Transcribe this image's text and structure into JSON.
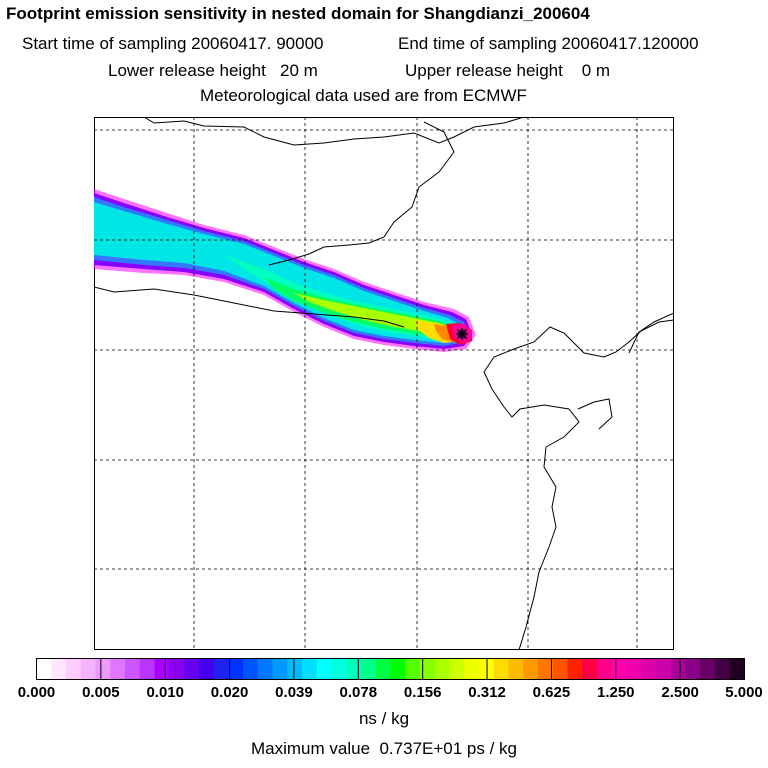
{
  "header": {
    "title": "Footprint emission sensitivity in nested domain for Shangdianzi_200604",
    "start_time": "Start time of sampling 20060417. 90000",
    "end_time": "End time of sampling 20060417.120000",
    "lower_release": "Lower release height   20 m",
    "upper_release": "Upper release height    0 m",
    "met_data": "Meteorological data used are from ECMWF"
  },
  "map": {
    "receptor_marker": "star-marker",
    "plume_colors": {
      "outer": "#ff00ff",
      "edge": "#8800ff",
      "blue": "#3377ff",
      "cyan": "#00e6e6",
      "aqua": "#00ffc0",
      "green": "#00ff66",
      "yellowgreen": "#aaff00",
      "yellow": "#ffdd00",
      "orange": "#ff8800",
      "red": "#ff0033",
      "magenta": "#ff0099",
      "dark": "#660066"
    }
  },
  "colorbar": {
    "tick_labels": [
      "0.000",
      "0.005",
      "0.010",
      "0.020",
      "0.039",
      "0.078",
      "0.156",
      "0.312",
      "0.625",
      "1.250",
      "2.500",
      "5.000"
    ],
    "colors": [
      "#ffffff",
      "#ffe6ff",
      "#ffccff",
      "#f7b3ff",
      "#ee99ff",
      "#dd77ff",
      "#cc55ff",
      "#bb33ff",
      "#aa00ff",
      "#8800ee",
      "#6600ee",
      "#4400ee",
      "#2222ee",
      "#0033ff",
      "#0055ff",
      "#0077ff",
      "#0099ff",
      "#00bbff",
      "#00ddff",
      "#00ffff",
      "#00ffdd",
      "#00ffbb",
      "#00ff88",
      "#00ff44",
      "#00ff00",
      "#55ff00",
      "#88ff00",
      "#aaff00",
      "#ccff00",
      "#eeff00",
      "#ffff00",
      "#ffdd00",
      "#ffbb00",
      "#ff9900",
      "#ff7700",
      "#ff5500",
      "#ff2200",
      "#ff0044",
      "#ff0088",
      "#ff00aa",
      "#ee00aa",
      "#dd00aa",
      "#cc00aa",
      "#aa0099",
      "#880088",
      "#660066",
      "#440044",
      "#220022"
    ],
    "unit": "ns / kg"
  },
  "footer": {
    "max_value": "Maximum value  0.737E+01 ps / kg"
  }
}
